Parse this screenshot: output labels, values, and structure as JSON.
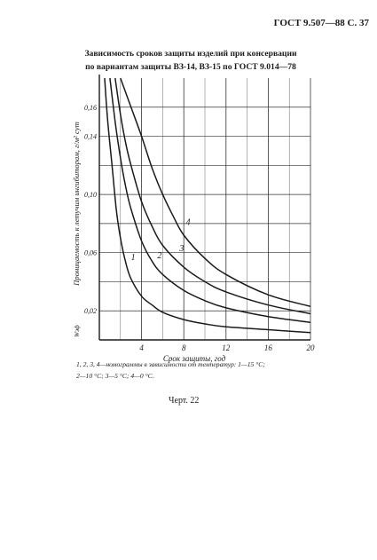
{
  "page": {
    "header": "ГОСТ 9.507—88 С. 37",
    "title_line1": "Зависимость сроков защиты изделий при консервации",
    "title_line2": "по вариантам защиты ВЗ-14, ВЗ-15 по ГОСТ 9.014—78",
    "caption_line1": "1, 2, 3, 4—номограммы в зависимости от температур: 1—15 °С;",
    "caption_line2": "2—10 °С; 3—5 °С; 4—0 °С.",
    "figure_label": "Черт. 22"
  },
  "colors": {
    "ink": "#1a1a1a",
    "grid": "#333333",
    "paper": "#ffffff"
  },
  "chart_data": {
    "type": "line",
    "title": "",
    "xlabel": "Срок защиты, год",
    "ylabel": "Проницаемость к летучим ингибиторам, г/м² сут",
    "y_unit_symbol": "Wэф",
    "xlim": [
      0,
      20
    ],
    "ylim": [
      0,
      0.18
    ],
    "x_ticks": [
      4,
      8,
      12,
      16,
      20
    ],
    "x_tick_labels": [
      "4",
      "8",
      "12",
      "16",
      "20"
    ],
    "y_ticks": [
      0.02,
      0.06,
      0.1,
      0.14,
      0.16
    ],
    "y_tick_labels": [
      "0,02",
      "0,06",
      "0,10",
      "0,14",
      "0,16"
    ],
    "grid": true,
    "series": [
      {
        "name": "1",
        "points": [
          [
            0.5,
            0.18
          ],
          [
            0.8,
            0.15
          ],
          [
            1.2,
            0.12
          ],
          [
            1.6,
            0.09
          ],
          [
            2,
            0.07
          ],
          [
            2.5,
            0.053
          ],
          [
            3,
            0.042
          ],
          [
            4,
            0.03
          ],
          [
            5,
            0.024
          ],
          [
            6,
            0.019
          ],
          [
            8,
            0.014
          ],
          [
            10,
            0.011
          ],
          [
            12,
            0.009
          ],
          [
            16,
            0.007
          ],
          [
            20,
            0.005
          ]
        ]
      },
      {
        "name": "2",
        "points": [
          [
            1,
            0.18
          ],
          [
            1.5,
            0.15
          ],
          [
            2,
            0.125
          ],
          [
            2.5,
            0.105
          ],
          [
            3,
            0.09
          ],
          [
            4,
            0.068
          ],
          [
            5,
            0.054
          ],
          [
            6,
            0.045
          ],
          [
            8,
            0.034
          ],
          [
            10,
            0.027
          ],
          [
            12,
            0.022
          ],
          [
            16,
            0.016
          ],
          [
            20,
            0.012
          ]
        ]
      },
      {
        "name": "3",
        "points": [
          [
            1.5,
            0.18
          ],
          [
            2,
            0.155
          ],
          [
            2.5,
            0.135
          ],
          [
            3,
            0.12
          ],
          [
            4,
            0.095
          ],
          [
            5,
            0.078
          ],
          [
            6,
            0.065
          ],
          [
            8,
            0.05
          ],
          [
            10,
            0.04
          ],
          [
            12,
            0.033
          ],
          [
            16,
            0.024
          ],
          [
            20,
            0.018
          ]
        ]
      },
      {
        "name": "4",
        "points": [
          [
            2,
            0.18
          ],
          [
            3,
            0.16
          ],
          [
            4,
            0.14
          ],
          [
            5,
            0.118
          ],
          [
            6,
            0.1
          ],
          [
            7,
            0.085
          ],
          [
            8,
            0.072
          ],
          [
            10,
            0.056
          ],
          [
            12,
            0.045
          ],
          [
            16,
            0.031
          ],
          [
            20,
            0.023
          ]
        ]
      }
    ],
    "curve_label_anchors": [
      {
        "name": "1",
        "x": 3.2,
        "y": 0.055
      },
      {
        "name": "2",
        "x": 5.7,
        "y": 0.056
      },
      {
        "name": "3",
        "x": 7.8,
        "y": 0.061
      },
      {
        "name": "4",
        "x": 8.4,
        "y": 0.079
      }
    ]
  }
}
